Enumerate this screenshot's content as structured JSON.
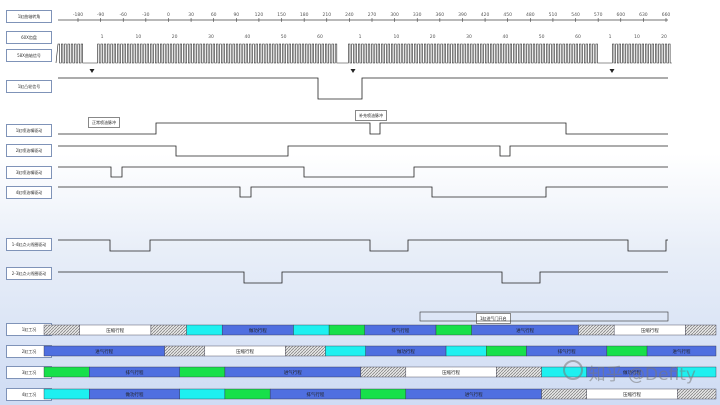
{
  "signals": [
    {
      "id": "crank",
      "label": "1缸曲轴转角"
    },
    {
      "id": "cam",
      "label": "60X齿盘"
    },
    {
      "id": "ckp",
      "label": "58X曲轴信号"
    },
    {
      "id": "cmp",
      "label": "1缸凸轮信号"
    },
    {
      "id": "inj1",
      "label": "1缸喷油嘴驱动"
    },
    {
      "id": "inj2",
      "label": "2缸喷油嘴驱动"
    },
    {
      "id": "inj3",
      "label": "3缸喷油嘴驱动"
    },
    {
      "id": "inj4",
      "label": "4缸喷油嘴驱动"
    },
    {
      "id": "ign14",
      "label": "1-4缸点火线圈驱动"
    },
    {
      "id": "ign23",
      "label": "2-3缸点火线圈驱动"
    }
  ],
  "crank_ticks": [
    "-180",
    "-90",
    "-60",
    "-30",
    "0",
    "30",
    "60",
    "90",
    "120",
    "150",
    "180",
    "210",
    "240",
    "270",
    "300",
    "330",
    "360",
    "390",
    "420",
    "450",
    "480",
    "510",
    "540",
    "570",
    "600",
    "630",
    "660"
  ],
  "tooth_ticks_a": [
    "1",
    "10",
    "20",
    "30",
    "40",
    "50",
    "60"
  ],
  "tooth_ticks_b": [
    "1",
    "10",
    "20",
    "30",
    "40",
    "50",
    "60"
  ],
  "tooth_ticks_c": [
    "1",
    "10",
    "20"
  ],
  "annotations": {
    "normal_injection": "正常喷油脉冲",
    "extra_injection": "补充喷油脉冲",
    "intake_open": "1缸进气门开启"
  },
  "strokes": [
    {
      "label": "1缸工况",
      "segments": [
        {
          "type": "hatch",
          "w": 0.07
        },
        {
          "type": "white",
          "text": "压缩行程",
          "w": 0.14
        },
        {
          "type": "hatch",
          "w": 0.07
        },
        {
          "type": "cyan",
          "w": 0.07
        },
        {
          "type": "blue",
          "text": "做功行程",
          "w": 0.14
        },
        {
          "type": "cyan",
          "w": 0.07
        },
        {
          "type": "green",
          "w": 0.07
        },
        {
          "type": "blue",
          "text": "排气行程",
          "w": 0.14
        },
        {
          "type": "green",
          "w": 0.07
        },
        {
          "type": "blue",
          "text": "进气行程",
          "w": 0.21
        },
        {
          "type": "hatch",
          "w": 0.07
        },
        {
          "type": "white",
          "text": "压缩行程",
          "w": 0.14
        },
        {
          "type": "hatch",
          "w": 0.06
        }
      ]
    },
    {
      "label": "2缸工况",
      "segments": [
        {
          "type": "blue",
          "text": "进气行程",
          "w": 0.21
        },
        {
          "type": "hatch",
          "w": 0.07
        },
        {
          "type": "white",
          "text": "压缩行程",
          "w": 0.14
        },
        {
          "type": "hatch",
          "w": 0.07
        },
        {
          "type": "cyan",
          "w": 0.07
        },
        {
          "type": "blue",
          "text": "做功行程",
          "w": 0.14
        },
        {
          "type": "cyan",
          "w": 0.07
        },
        {
          "type": "green",
          "w": 0.07
        },
        {
          "type": "blue",
          "text": "排气行程",
          "w": 0.14
        },
        {
          "type": "green",
          "w": 0.07
        },
        {
          "type": "blue",
          "text": "进气行程",
          "w": 0.12
        }
      ]
    },
    {
      "label": "3缸工况",
      "segments": [
        {
          "type": "green",
          "w": 0.07
        },
        {
          "type": "blue",
          "text": "排气行程",
          "w": 0.14
        },
        {
          "type": "green",
          "w": 0.07
        },
        {
          "type": "blue",
          "text": "进气行程",
          "w": 0.21
        },
        {
          "type": "hatch",
          "w": 0.07
        },
        {
          "type": "white",
          "text": "压缩行程",
          "w": 0.14
        },
        {
          "type": "hatch",
          "w": 0.07
        },
        {
          "type": "cyan",
          "w": 0.07
        },
        {
          "type": "blue",
          "text": "做功行程",
          "w": 0.14
        },
        {
          "type": "cyan",
          "w": 0.06
        }
      ]
    },
    {
      "label": "4缸工况",
      "segments": [
        {
          "type": "cyan",
          "w": 0.07
        },
        {
          "type": "blue",
          "text": "做功行程",
          "w": 0.14
        },
        {
          "type": "cyan",
          "w": 0.07
        },
        {
          "type": "green",
          "w": 0.07
        },
        {
          "type": "blue",
          "text": "排气行程",
          "w": 0.14
        },
        {
          "type": "green",
          "w": 0.07
        },
        {
          "type": "blue",
          "text": "进气行程",
          "w": 0.21
        },
        {
          "type": "hatch",
          "w": 0.07
        },
        {
          "type": "white",
          "text": "压缩行程",
          "w": 0.14
        },
        {
          "type": "hatch",
          "w": 0.06
        }
      ]
    }
  ],
  "watermark": "知乎 @Defity",
  "colors": {
    "blue": "#4f6fe0",
    "cyan": "#1ef0f0",
    "green": "#17e04a",
    "white": "#ffffff",
    "line": "#222222"
  }
}
